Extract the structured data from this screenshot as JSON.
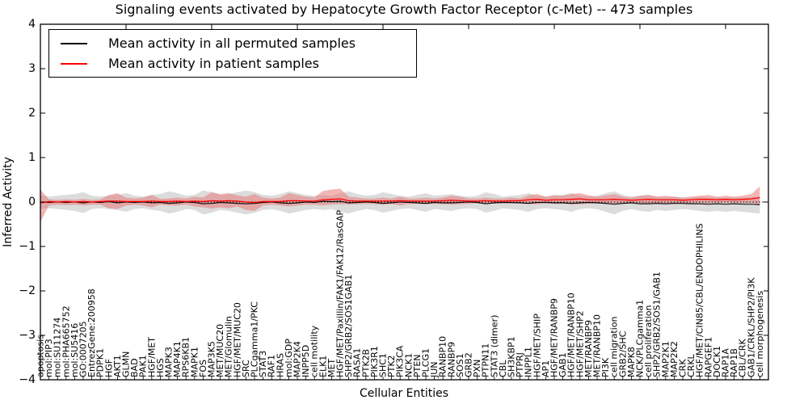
{
  "title": "Signaling events activated by Hepatocyte Growth Factor Receptor (c-Met) -- 473 samples",
  "legend": {
    "items": [
      {
        "label": "Mean activity in all permuted samples",
        "color": "#000000"
      },
      {
        "label": "Mean activity in patient samples",
        "color": "#ff0000"
      }
    ]
  },
  "axes": {
    "xlabel": "Cellular Entities",
    "ylabel": "Inferred Activity",
    "ytick_labels": [
      "4",
      "3",
      "2",
      "1",
      "0",
      "−1",
      "−2",
      "−3",
      "−4"
    ],
    "ytick_values": [
      4,
      3,
      2,
      1,
      0,
      -1,
      -2,
      -3,
      -4
    ],
    "ylim": [
      -4,
      4
    ]
  },
  "colors": {
    "permuted_band": "#c9c9c9",
    "patient_band": "#e87a7a",
    "permuted_mean": "#000000",
    "patient_mean": "#ff0000",
    "zero_line": "#000000"
  },
  "chart_data": {
    "type": "area",
    "title": "Signaling events activated by Hepatocyte Growth Factor Receptor (c-Met) -- 473 samples",
    "xlabel": "Cellular Entities",
    "ylabel": "Inferred Activity",
    "ylim": [
      -4,
      4
    ],
    "grid": false,
    "legend_position": "upper left",
    "categories": [
      "apoptosis",
      "mol:PIP3",
      "mol:SU11274",
      "mol:PHA665752",
      "mol:SU5416",
      "GO:0007205",
      "EntrezGene:200958",
      "PDPK1",
      "HGF",
      "AKT1",
      "GLMN",
      "BAD",
      "PAK1",
      "HGF/MET",
      "HGS",
      "MAPK3",
      "MAP4K1",
      "RPS6KB1",
      "MAPK1",
      "FOS",
      "MAP3K5",
      "MET/MUC20",
      "MET/Glomulin",
      "HGF/MET/MUC20",
      "SRC",
      "PLCgamma1/PKC",
      "STAT3",
      "RAF1",
      "HRAS",
      "mol:GDP",
      "MAP2K4",
      "INPP5D",
      "cell motility",
      "ELK1",
      "MET",
      "HGF/MET/Paxillin/FAK1/FAK12/RasGAP",
      "SHP2/GRB2/SOS1GAB1",
      "RASA1",
      "PTK2B",
      "PIK3R1",
      "SHC1",
      "PTK2",
      "PIK3CA",
      "NCK1",
      "PTEN",
      "PLCG1",
      "JUN",
      "RANBP10",
      "RANBP9",
      "SOS1",
      "GRB2",
      "PXN",
      "PTPN11",
      "STAT3 (dimer)",
      "CBL",
      "SH3KBP1",
      "PTPRJ",
      "INPPL1",
      "HGF/MET/SHIP",
      "AP1",
      "HGF/MET/RANBP9",
      "GAB1",
      "HGF/MET/RANBP10",
      "HGF/MET/SHP2",
      "MET/RANBP9",
      "MET/RANBP10",
      "PI3K",
      "cell migration",
      "GRB2/SHC",
      "MAPK8",
      "NCK/PLCgamma1",
      "cell proliferation",
      "SHP2/GRB2/SOS1/GAB1",
      "MAP2K1",
      "MAP2K2",
      "CRK",
      "CRKL",
      "HGF/MET/CIN85/CBL/ENDOPHILINS",
      "RAPGEF1",
      "DOCK1",
      "RAP1A",
      "RAP1B",
      "CBL/CRK",
      "GAB1/CRKL/SHP2/PI3K",
      "cell morphogenesis"
    ],
    "series": [
      {
        "name": "Permuted band upper",
        "values": [
          0.15,
          0.12,
          0.14,
          0.16,
          0.18,
          0.22,
          0.14,
          0.12,
          0.14,
          0.16,
          0.2,
          0.14,
          0.12,
          0.16,
          0.18,
          0.24,
          0.2,
          0.14,
          0.16,
          0.26,
          0.22,
          0.16,
          0.18,
          0.22,
          0.26,
          0.22,
          0.16,
          0.14,
          0.18,
          0.24,
          0.2,
          0.16,
          0.14,
          0.16,
          0.14,
          0.2,
          0.24,
          0.18,
          0.14,
          0.16,
          0.22,
          0.18,
          0.14,
          0.12,
          0.16,
          0.2,
          0.14,
          0.16,
          0.18,
          0.14,
          0.12,
          0.14,
          0.22,
          0.18,
          0.12,
          0.14,
          0.16,
          0.2,
          0.14,
          0.12,
          0.14,
          0.16,
          0.2,
          0.14,
          0.12,
          0.14,
          0.2,
          0.24,
          0.16,
          0.12,
          0.14,
          0.16,
          0.12,
          0.1,
          0.12,
          0.1,
          0.1,
          0.12,
          0.1,
          0.1,
          0.1,
          0.1,
          0.1,
          0.1,
          0.12
        ]
      },
      {
        "name": "Permuted band lower",
        "values": [
          -0.15,
          -0.14,
          -0.16,
          -0.18,
          -0.2,
          -0.25,
          -0.16,
          -0.14,
          -0.16,
          -0.18,
          -0.22,
          -0.16,
          -0.14,
          -0.18,
          -0.2,
          -0.26,
          -0.22,
          -0.16,
          -0.18,
          -0.28,
          -0.24,
          -0.18,
          -0.2,
          -0.24,
          -0.28,
          -0.24,
          -0.18,
          -0.16,
          -0.2,
          -0.26,
          -0.22,
          -0.18,
          -0.16,
          -0.18,
          -0.16,
          -0.22,
          -0.26,
          -0.2,
          -0.16,
          -0.18,
          -0.24,
          -0.2,
          -0.16,
          -0.14,
          -0.18,
          -0.22,
          -0.16,
          -0.18,
          -0.2,
          -0.16,
          -0.14,
          -0.16,
          -0.24,
          -0.2,
          -0.14,
          -0.16,
          -0.18,
          -0.22,
          -0.16,
          -0.14,
          -0.16,
          -0.18,
          -0.22,
          -0.16,
          -0.14,
          -0.16,
          -0.22,
          -0.28,
          -0.2,
          -0.16,
          -0.2,
          -0.22,
          -0.18,
          -0.2,
          -0.18,
          -0.16,
          -0.18,
          -0.2,
          -0.22,
          -0.2,
          -0.22,
          -0.2,
          -0.22,
          -0.24,
          -0.26
        ]
      },
      {
        "name": "Mean activity in all permuted samples",
        "values": [
          0,
          -0.01,
          0,
          -0.01,
          0,
          -0.02,
          0,
          -0.01,
          0.01,
          -0.02,
          0,
          -0.01,
          0,
          -0.02,
          -0.01,
          -0.03,
          -0.02,
          0,
          -0.01,
          -0.04,
          -0.03,
          -0.01,
          -0.02,
          -0.03,
          -0.04,
          -0.03,
          -0.01,
          0,
          -0.02,
          -0.03,
          -0.02,
          0,
          -0.01,
          0.02,
          0.01,
          0.02,
          -0.02,
          -0.01,
          0,
          -0.01,
          -0.03,
          -0.02,
          0,
          -0.01,
          -0.02,
          -0.03,
          -0.01,
          -0.02,
          -0.02,
          -0.01,
          0,
          -0.01,
          -0.04,
          -0.02,
          -0.01,
          -0.01,
          -0.02,
          -0.03,
          -0.01,
          -0.01,
          -0.02,
          -0.02,
          -0.03,
          -0.02,
          -0.01,
          -0.02,
          -0.03,
          -0.05,
          -0.03,
          -0.02,
          -0.04,
          -0.04,
          -0.03,
          -0.04,
          -0.03,
          -0.03,
          -0.04,
          -0.04,
          -0.05,
          -0.04,
          -0.05,
          -0.04,
          -0.05,
          -0.05,
          -0.06
        ]
      },
      {
        "name": "Patient band upper",
        "values": [
          0.28,
          0.06,
          0.05,
          0.06,
          0.05,
          0.07,
          0.05,
          0.06,
          0.16,
          0.2,
          0.1,
          0.08,
          0.1,
          0.16,
          0.07,
          0.08,
          0.1,
          0.08,
          0.12,
          0.1,
          0.22,
          0.18,
          0.2,
          0.15,
          0.12,
          0.18,
          0.1,
          0.08,
          0.1,
          0.2,
          0.16,
          0.12,
          0.1,
          0.25,
          0.28,
          0.3,
          0.12,
          0.1,
          0.08,
          0.08,
          0.1,
          0.08,
          0.12,
          0.08,
          0.08,
          0.1,
          0.08,
          0.1,
          0.14,
          0.12,
          0.08,
          0.08,
          0.1,
          0.08,
          0.08,
          0.1,
          0.08,
          0.15,
          0.18,
          0.12,
          0.16,
          0.14,
          0.18,
          0.2,
          0.15,
          0.12,
          0.15,
          0.18,
          0.12,
          0.1,
          0.14,
          0.16,
          0.12,
          0.14,
          0.12,
          0.1,
          0.12,
          0.14,
          0.16,
          0.12,
          0.14,
          0.12,
          0.14,
          0.18,
          0.35
        ]
      },
      {
        "name": "Patient band lower",
        "values": [
          -0.45,
          -0.08,
          -0.06,
          -0.07,
          -0.06,
          -0.08,
          -0.06,
          -0.06,
          -0.14,
          -0.16,
          -0.08,
          -0.06,
          -0.08,
          -0.12,
          -0.06,
          -0.08,
          -0.08,
          -0.06,
          -0.1,
          -0.12,
          -0.15,
          -0.12,
          -0.14,
          -0.1,
          -0.18,
          -0.2,
          -0.08,
          -0.06,
          -0.08,
          -0.1,
          -0.08,
          -0.06,
          -0.06,
          -0.08,
          -0.06,
          -0.05,
          -0.06,
          -0.05,
          -0.04,
          -0.05,
          -0.06,
          -0.04,
          -0.08,
          -0.04,
          -0.04,
          -0.05,
          -0.04,
          -0.05,
          -0.06,
          -0.05,
          -0.04,
          -0.03,
          -0.05,
          -0.03,
          -0.03,
          -0.04,
          -0.03,
          -0.04,
          -0.05,
          -0.03,
          -0.04,
          -0.04,
          -0.05,
          -0.05,
          -0.04,
          -0.03,
          -0.04,
          -0.05,
          -0.03,
          -0.02,
          -0.04,
          -0.05,
          -0.03,
          -0.04,
          -0.03,
          -0.02,
          -0.03,
          -0.02,
          -0.03,
          -0.02,
          -0.02,
          -0.02,
          -0.03,
          -0.02,
          -0.05
        ]
      },
      {
        "name": "Mean activity in patient samples",
        "values": [
          -0.02,
          0.01,
          0,
          0.01,
          0,
          0.01,
          0,
          0.01,
          0.02,
          0.02,
          0.01,
          0.01,
          0.01,
          0.02,
          0.01,
          0.01,
          0.02,
          0.01,
          0.02,
          0.01,
          0.03,
          0.02,
          0.03,
          0.02,
          0,
          -0.01,
          0.01,
          0.01,
          0.01,
          0.03,
          0.03,
          0.02,
          0.02,
          0.05,
          0.06,
          0.07,
          0.03,
          0.02,
          0.02,
          0.02,
          0.02,
          0.02,
          0.03,
          0.02,
          0.02,
          0.02,
          0.02,
          0.03,
          0.04,
          0.03,
          0.02,
          0.02,
          0.03,
          0.02,
          0.02,
          0.03,
          0.03,
          0.05,
          0.06,
          0.04,
          0.05,
          0.05,
          0.06,
          0.07,
          0.05,
          0.05,
          0.05,
          0.06,
          0.05,
          0.04,
          0.05,
          0.06,
          0.05,
          0.05,
          0.05,
          0.04,
          0.05,
          0.06,
          0.06,
          0.05,
          0.06,
          0.05,
          0.06,
          0.07,
          0.1
        ]
      }
    ]
  }
}
